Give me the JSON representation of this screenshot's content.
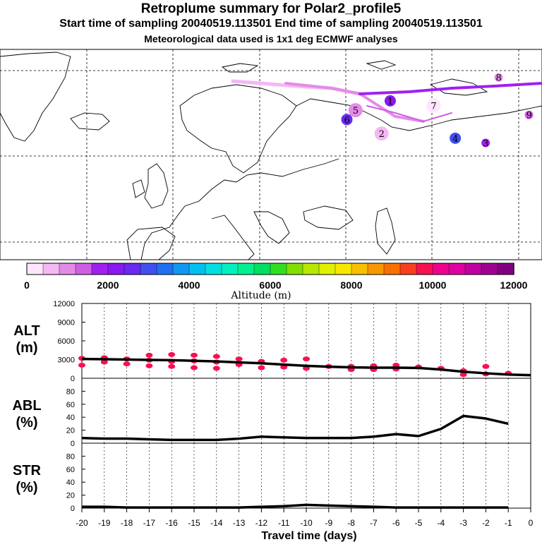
{
  "header": {
    "title": "Retroplume summary for Polar2_profile5",
    "sampling": "Start time of sampling 20040519.113501     End time of sampling 20040519.113501",
    "met_data": "Meteorological data used is 1x1 deg ECMWF analyses"
  },
  "colorbar": {
    "label": "Altitude (m)",
    "ticks": [
      "0",
      "2000",
      "4000",
      "6000",
      "8000",
      "10000",
      "12000"
    ],
    "colors": [
      "#ffe6ff",
      "#f4b8f4",
      "#e48be8",
      "#cc60e0",
      "#a020f0",
      "#8a18f0",
      "#6a28f0",
      "#4050f0",
      "#2070f0",
      "#1098f0",
      "#00c0f0",
      "#00e0e0",
      "#00f0c0",
      "#00f090",
      "#00e060",
      "#30e020",
      "#80e000",
      "#b8e800",
      "#e0f000",
      "#f8e800",
      "#f8c000",
      "#f89800",
      "#f87000",
      "#f84020",
      "#f81050",
      "#f00090",
      "#e000a0",
      "#c000a0",
      "#a00090",
      "#800080"
    ]
  },
  "map": {
    "plume_labels": [
      {
        "text": "8",
        "lon": 55,
        "lat": 74
      },
      {
        "text": "1",
        "lon": 30,
        "lat": 69
      },
      {
        "text": "7",
        "lon": 40,
        "lat": 68
      },
      {
        "text": "9",
        "lon": 62,
        "lat": 66
      },
      {
        "text": "6",
        "lon": 20,
        "lat": 65
      },
      {
        "text": "2",
        "lon": 28,
        "lat": 62
      },
      {
        "text": "3",
        "lon": 52,
        "lat": 60
      },
      {
        "text": "4",
        "lon": 45,
        "lat": 61
      },
      {
        "text": "5",
        "lon": 22,
        "lat": 67
      }
    ]
  },
  "chart_data": [
    {
      "type": "line",
      "panel": "ALT",
      "title": "ALT",
      "ylabel": "ALT (m)",
      "ylabel_line1": "ALT",
      "ylabel_line2": "(m)",
      "ylim": [
        0,
        12000
      ],
      "yticks": [
        "0",
        "3000",
        "6000",
        "9000",
        "12000"
      ],
      "x": [
        -20,
        -19,
        -18,
        -17,
        -16,
        -15,
        -14,
        -13,
        -12,
        -11,
        -10,
        -9,
        -8,
        -7,
        -6,
        -5,
        -4,
        -3,
        -2,
        -1,
        0
      ],
      "values": [
        3100,
        3050,
        3000,
        2950,
        2900,
        2800,
        2700,
        2550,
        2400,
        2200,
        2000,
        1850,
        1750,
        1700,
        1700,
        1650,
        1400,
        1050,
        800,
        600,
        500
      ],
      "points_x": [
        -20,
        -20,
        -19,
        -19,
        -18,
        -18,
        -17,
        -17,
        -17,
        -16,
        -16,
        -16,
        -15,
        -15,
        -15,
        -14,
        -14,
        -14,
        -13,
        -13,
        -12,
        -12,
        -11,
        -11,
        -10,
        -10,
        -9,
        -8,
        -8,
        -7,
        -7,
        -6,
        -6,
        -5,
        -4,
        -3,
        -3,
        -2,
        -2,
        -1
      ],
      "points_y": [
        3200,
        2100,
        3300,
        2600,
        3100,
        2300,
        3700,
        2900,
        2000,
        3800,
        2700,
        1900,
        3700,
        2800,
        1700,
        3500,
        2600,
        1600,
        3100,
        2200,
        2700,
        1700,
        2900,
        1800,
        3100,
        1600,
        1900,
        1900,
        1400,
        2000,
        1400,
        2100,
        1500,
        1800,
        1600,
        1200,
        600,
        1900,
        700,
        800
      ],
      "xlabel": "Travel time (days)",
      "xtick_labels": [
        "-20",
        "-19",
        "-18",
        "-17",
        "-16",
        "-15",
        "-14",
        "-13",
        "-12",
        "-11",
        "-10",
        "-9",
        "-8",
        "-7",
        "-6",
        "-5",
        "-4",
        "-3",
        "-2",
        "-1",
        "0"
      ]
    },
    {
      "type": "line",
      "panel": "ABL",
      "title": "ABL",
      "ylabel": "ABL (%)",
      "ylabel_line1": "ABL",
      "ylabel_line2": "(%)",
      "ylim": [
        0,
        100
      ],
      "yticks": [
        "0",
        "20",
        "40",
        "60",
        "80"
      ],
      "x": [
        -20,
        -19,
        -18,
        -17,
        -16,
        -15,
        -14,
        -13,
        -12,
        -11,
        -10,
        -9,
        -8,
        -7,
        -6,
        -5,
        -4,
        -3,
        -2,
        -1
      ],
      "values": [
        8,
        7,
        7,
        6,
        5,
        5,
        5,
        7,
        10,
        9,
        8,
        8,
        8,
        10,
        14,
        11,
        22,
        42,
        38,
        30
      ]
    },
    {
      "type": "line",
      "panel": "STR",
      "title": "STR",
      "ylabel": "STR (%)",
      "ylabel_line1": "STR",
      "ylabel_line2": "(%)",
      "ylim": [
        0,
        100
      ],
      "yticks": [
        "0",
        "20",
        "40",
        "60",
        "80"
      ],
      "x": [
        -20,
        -19,
        -18,
        -17,
        -16,
        -15,
        -14,
        -13,
        -12,
        -11,
        -10,
        -9,
        -8,
        -7,
        -6,
        -5,
        -4,
        -3,
        -2,
        -1
      ],
      "values": [
        2,
        2,
        1,
        1,
        1,
        1,
        1,
        1,
        2,
        3,
        5,
        4,
        3,
        2,
        1,
        1,
        1,
        1,
        1,
        1
      ]
    }
  ]
}
